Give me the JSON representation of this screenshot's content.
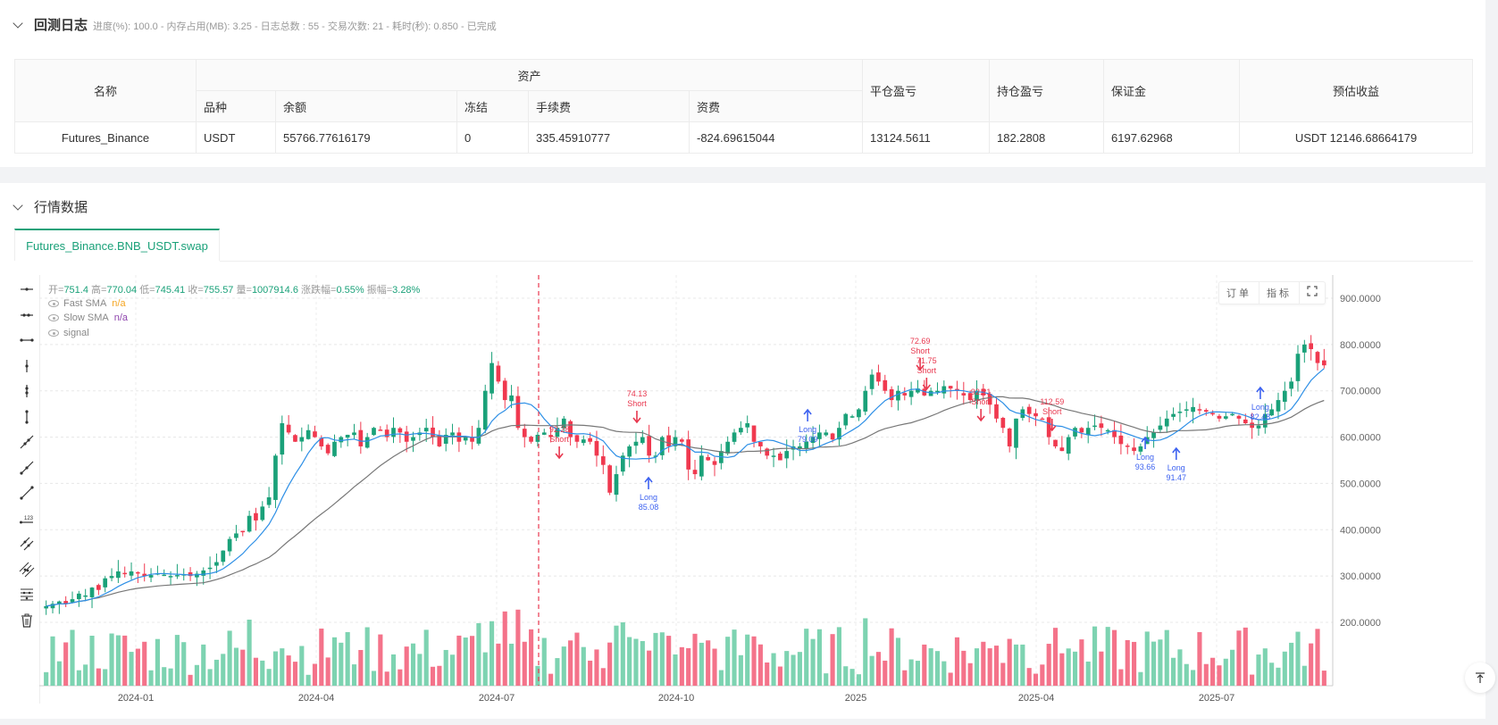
{
  "log": {
    "title": "回测日志",
    "subtitle": "进度(%): 100.0  - 内存占用(MB): 3.25 - 日志总数 : 55 - 交易次数:  21 - 耗时(秒): 0.850 - 已完成"
  },
  "assets_table": {
    "headers": {
      "name": "名称",
      "assets": "资产",
      "variety": "品种",
      "balance": "余额",
      "frozen": "冻结",
      "fee": "手续费",
      "funding": "资费",
      "closed_pnl": "平仓盈亏",
      "position_pnl": "持仓盈亏",
      "margin": "保证金",
      "est_profit": "预估收益"
    },
    "rows": [
      {
        "name": "Futures_Binance",
        "variety": "USDT",
        "balance": "55766.77616179",
        "frozen": "0",
        "fee": "335.45910777",
        "funding": "-824.69615044",
        "closed_pnl": "13124.5611",
        "position_pnl": "182.2808",
        "margin": "6197.62968",
        "est_profit": "USDT 12146.68664179"
      }
    ]
  },
  "market": {
    "title": "行情数据",
    "tab_label": "Futures_Binance.BNB_USDT.swap",
    "ohlc": {
      "open_label": "开=",
      "open": "751.4",
      "high_label": "高=",
      "high": "770.04",
      "low_label": "低=",
      "low": "745.41",
      "close_label": "收=",
      "close": "755.57",
      "vol_label": "量=",
      "vol": "1007914.6",
      "chg_label": "涨跌幅=",
      "chg": "0.55%",
      "amp_label": "振幅=",
      "amp": "3.28%"
    },
    "legend": [
      {
        "name": "Fast SMA",
        "value": "n/a",
        "color": "#f5a623"
      },
      {
        "name": "Slow SMA",
        "value": "n/a",
        "color": "#8e44ad"
      },
      {
        "name": "signal",
        "value": "",
        "color": "#888"
      }
    ],
    "buttons": {
      "orders": "订单",
      "indicators": "指标"
    },
    "tools": [
      "horizontal-line-icon",
      "horizontal-ray-icon",
      "horizontal-segment-icon",
      "vertical-line-icon",
      "vertical-ray-icon",
      "vertical-segment-icon",
      "trend-line-icon",
      "ray-line-icon",
      "segment-line-icon",
      "price-line-icon",
      "parallel-channel-icon",
      "multi-channel-icon",
      "fibonacci-icon",
      "trash-icon"
    ]
  },
  "colors": {
    "up": "#1aa179",
    "down": "#f0394f",
    "vol_up": "#7dd3b1",
    "vol_down": "#f4738a",
    "fast_sma": "#2d8fe6",
    "slow_sma": "#777777",
    "long_signal": "#3d62f0",
    "short_signal": "#e8384f",
    "accent": "#1aa179"
  },
  "chart_data": {
    "type": "candlestick",
    "title": "Futures_Binance.BNB_USDT.swap",
    "x_ticks": [
      "2024-01",
      "2024-04",
      "2024-07",
      "2024-10",
      "2025",
      "2025-04",
      "2025-07"
    ],
    "y_ticks": [
      "900.0000",
      "800.0000",
      "700.0000",
      "600.0000",
      "500.0000",
      "400.0000",
      "300.0000",
      "200.0000"
    ],
    "ylim": [
      175,
      985
    ],
    "series": [
      "Fast SMA",
      "Slow SMA",
      "Volume"
    ],
    "signals": [
      {
        "type": "Short",
        "price": "92.28",
        "x_frac": 0.402
      },
      {
        "type": "Short",
        "price": "74.13",
        "x_frac": 0.462
      },
      {
        "type": "Long",
        "price": "85.08",
        "x_frac": 0.471
      },
      {
        "type": "Long",
        "price": "79.09",
        "x_frac": 0.594
      },
      {
        "type": "Short",
        "price": "72.69",
        "x_frac": 0.681
      },
      {
        "type": "Short",
        "price": "71.75",
        "x_frac": 0.686
      },
      {
        "type": "Short",
        "price": "92.21",
        "x_frac": 0.728
      },
      {
        "type": "Short",
        "price": "112.59",
        "x_frac": 0.783
      },
      {
        "type": "Long",
        "price": "93.66",
        "x_frac": 0.855
      },
      {
        "type": "Long",
        "price": "91.47",
        "x_frac": 0.879
      },
      {
        "type": "Long",
        "price": "82.48",
        "x_frac": 0.944
      }
    ],
    "closes_approx": [
      235,
      240,
      245,
      240,
      250,
      262,
      258,
      275,
      270,
      295,
      300,
      310,
      305,
      310,
      308,
      300,
      302,
      306,
      303,
      300,
      302,
      304,
      300,
      305,
      312,
      318,
      330,
      355,
      380,
      392,
      395,
      430,
      420,
      450,
      470,
      560,
      630,
      610,
      590,
      600,
      615,
      600,
      580,
      565,
      590,
      600,
      605,
      610,
      580,
      600,
      620,
      615,
      600,
      620,
      610,
      590,
      600,
      610,
      620,
      600,
      580,
      605,
      610,
      590,
      600,
      590,
      620,
      700,
      760,
      720,
      680,
      690,
      620,
      600,
      590,
      605,
      610,
      600,
      620,
      640,
      600,
      590,
      595,
      590,
      560,
      540,
      480,
      520,
      560,
      580,
      590,
      600,
      560,
      560,
      600,
      580,
      600,
      590,
      530,
      520,
      560,
      550,
      540,
      570,
      590,
      610,
      620,
      630,
      590,
      580,
      560,
      560,
      550,
      570,
      580,
      580,
      590,
      600,
      610,
      610,
      595,
      620,
      650,
      645,
      660,
      700,
      735,
      720,
      700,
      680,
      700,
      690,
      700,
      705,
      690,
      700,
      700,
      710,
      705,
      700,
      690,
      680,
      700,
      690,
      670,
      640,
      620,
      580,
      640,
      660,
      650,
      645,
      640,
      600,
      580,
      570,
      600,
      620,
      610,
      620,
      625,
      620,
      615,
      600,
      585,
      580,
      570,
      580,
      600,
      610,
      625,
      640,
      650,
      655,
      660,
      665,
      660,
      655,
      650,
      640,
      645,
      650,
      640,
      630,
      620,
      625,
      650,
      660,
      680,
      700,
      720,
      780,
      800,
      790,
      760,
      755
    ]
  }
}
